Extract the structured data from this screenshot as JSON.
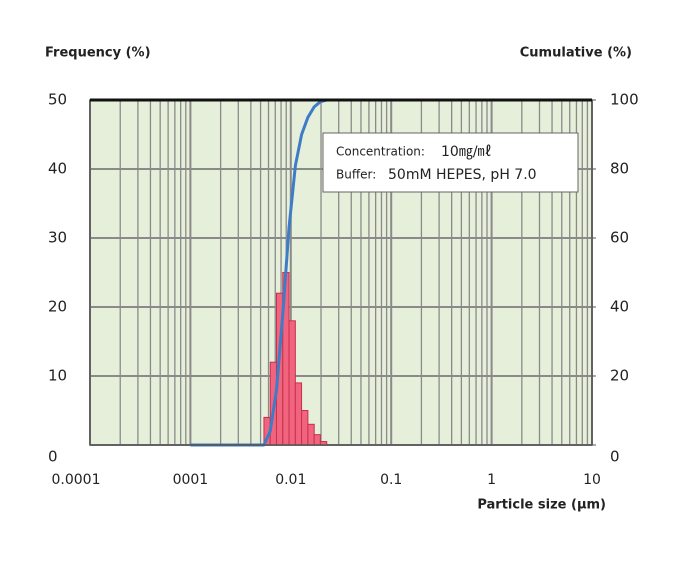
{
  "chart_data": {
    "type": "histogram",
    "y_label": "Frequency (%)",
    "y2_label": "Cumulative (%)",
    "x_label": "Particle size (μm)",
    "x_log": true,
    "grid": true,
    "xlim": [
      0.0001,
      10
    ],
    "xticks": [
      0.0001,
      {
        "value": 0.001,
        "label": "0001"
      },
      0.01,
      0.1,
      1,
      10
    ],
    "ylim": [
      0,
      50
    ],
    "yticks": [
      0,
      10,
      20,
      30,
      40,
      50
    ],
    "y2lim": [
      0,
      100
    ],
    "y2ticks": [
      0,
      20,
      40,
      60,
      80,
      100
    ],
    "bins": [
      0.0054,
      0.00624,
      0.0072,
      0.00832,
      0.0096,
      0.0111,
      0.0128,
      0.0148,
      0.0171,
      0.0197,
      0.0228
    ],
    "values": [
      4,
      12,
      22,
      25,
      18,
      9,
      5,
      3,
      1.5,
      0.5
    ],
    "color": "#f0647e",
    "edge_color": "#c8304e",
    "background": "#e6efd9",
    "series": [
      {
        "name": "Cumulative",
        "axis": "y2",
        "color": "#3d7cc6",
        "x": [
          0.001,
          0.0054,
          0.00624,
          0.0072,
          0.00832,
          0.0096,
          0.0111,
          0.0128,
          0.0148,
          0.0171,
          0.0197,
          0.0228,
          5
        ],
        "values": [
          0,
          0,
          4,
          16,
          38,
          63,
          81,
          90,
          95,
          98,
          99.5,
          100,
          100
        ]
      }
    ],
    "notes": [
      {
        "label": "Concentration:",
        "value": "10㎎/㎖"
      },
      {
        "label": "Buffer:",
        "value": "50mM HEPES, pH 7.0"
      }
    ]
  }
}
